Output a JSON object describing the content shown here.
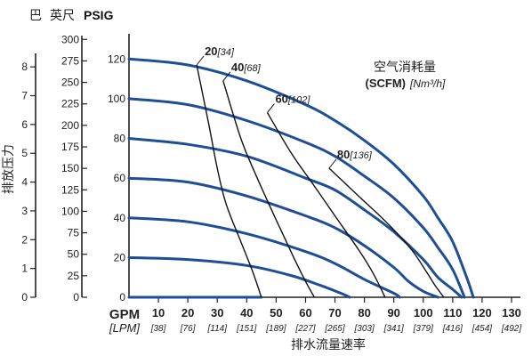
{
  "chart_data": {
    "type": "line",
    "colors": {
      "pressure_curve": "#1d4e96",
      "air_curve": "#111111",
      "axis": "#222222"
    },
    "left_axis": {
      "bar_title": "巴",
      "psi_title": "英尺",
      "ft_title": "尺",
      "psig_title": "PSIG",
      "bar_ticks": [
        0,
        1,
        2,
        3,
        4,
        5,
        6,
        7,
        8
      ],
      "ft_ticks": [
        0,
        25,
        50,
        75,
        100,
        125,
        150,
        175,
        200,
        225,
        250,
        275,
        300
      ],
      "psig_ticks": [
        0,
        20,
        40,
        60,
        80,
        100,
        120
      ],
      "psig_range": [
        0,
        130
      ]
    },
    "ylabel": "排放压力",
    "xlabel": "排水流量速率",
    "x_axis": {
      "gpm_label": "GPM",
      "lpm_label": "[LPM]",
      "gpm_ticks": [
        10,
        20,
        30,
        40,
        50,
        60,
        70,
        80,
        90,
        100,
        110,
        120,
        130
      ],
      "lpm_ticks": [
        "[38]",
        "[76]",
        "[114]",
        "[151]",
        "[189]",
        "[227]",
        "[265]",
        "[303]",
        "[341]",
        "[379]",
        "[416]",
        "[454]",
        "[492]"
      ],
      "gpm_range": [
        0,
        130
      ]
    },
    "air_legend": {
      "line1": "空气消耗量",
      "line2_bold": "(SCFM)",
      "line2_italic": "[Nm³/h]"
    },
    "pressure_curves": [
      {
        "x": [
          0,
          20,
          40,
          60,
          70,
          80,
          90,
          100,
          105,
          110,
          115,
          117
        ],
        "y": [
          120,
          117,
          109,
          97,
          89,
          79,
          67,
          51,
          40,
          28,
          9,
          0
        ]
      },
      {
        "x": [
          0,
          20,
          40,
          60,
          70,
          80,
          90,
          100,
          105,
          110,
          114
        ],
        "y": [
          100,
          97,
          89,
          78,
          71,
          61,
          50,
          35,
          25,
          14,
          0
        ]
      },
      {
        "x": [
          0,
          20,
          40,
          60,
          70,
          80,
          90,
          100,
          105,
          110,
          113
        ],
        "y": [
          80,
          77,
          71,
          60,
          54,
          44,
          33,
          19,
          10,
          4,
          0
        ]
      },
      {
        "x": [
          0,
          20,
          40,
          60,
          70,
          80,
          90,
          95,
          100,
          105
        ],
        "y": [
          60,
          58,
          51,
          41,
          35,
          26,
          15,
          8,
          3,
          0
        ]
      },
      {
        "x": [
          0,
          20,
          40,
          60,
          70,
          80,
          90,
          92
        ],
        "y": [
          40,
          38,
          32,
          23,
          17,
          9,
          2,
          0
        ]
      },
      {
        "x": [
          0,
          20,
          40,
          55,
          65,
          72,
          75
        ],
        "y": [
          20,
          19,
          16,
          11,
          6,
          2,
          0
        ]
      },
      {
        "x": [
          0,
          20,
          35,
          42,
          45
        ],
        "y": [
          0,
          0,
          0,
          0,
          0
        ]
      }
    ],
    "air_curves": [
      {
        "label": "20",
        "label_metric": "[34]",
        "x": [
          23,
          27,
          30,
          33,
          38,
          42,
          45
        ],
        "y": [
          117,
          88,
          65,
          47,
          28,
          13,
          0
        ]
      },
      {
        "label": "40",
        "label_metric": "[68]",
        "x": [
          32,
          38,
          43,
          50,
          56,
          60,
          63
        ],
        "y": [
          109,
          80,
          62,
          39,
          20,
          8,
          0
        ]
      },
      {
        "label": "60",
        "label_metric": "[102]",
        "x": [
          47,
          55,
          63,
          70,
          78,
          83,
          87
        ],
        "y": [
          93,
          73,
          56,
          41,
          24,
          12,
          0
        ]
      },
      {
        "label": "80",
        "label_metric": "[136]",
        "x": [
          68,
          78,
          88,
          96,
          101,
          104,
          107
        ],
        "y": [
          65,
          51,
          37,
          24,
          13,
          6,
          0
        ]
      }
    ]
  }
}
